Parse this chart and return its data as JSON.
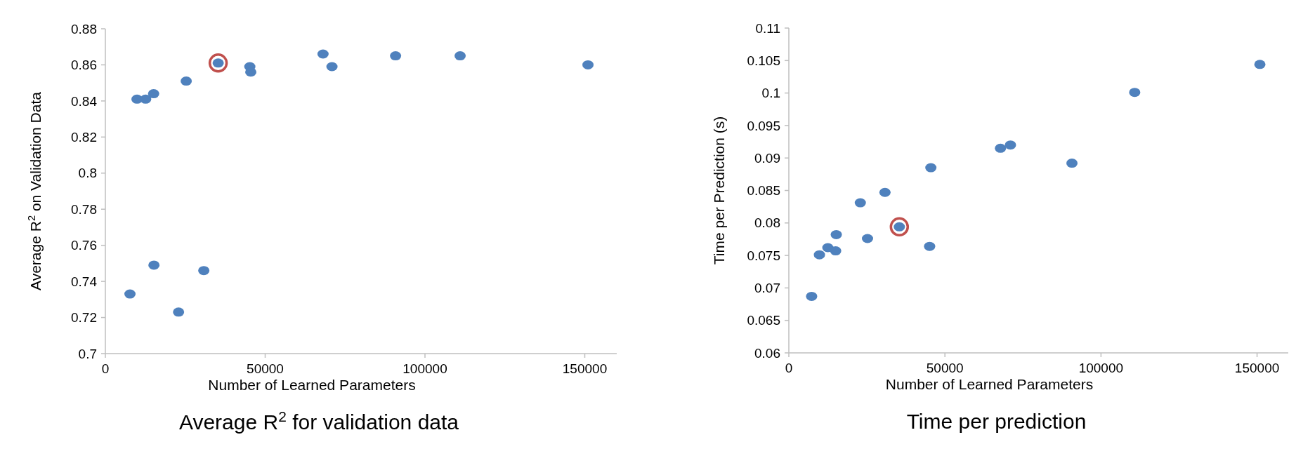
{
  "chart_data": [
    {
      "type": "scatter",
      "title": "Average R$^{2}$ for validation data",
      "xlabel": "Number of Learned Parameters",
      "ylabel": "Average R$^{2}$ on Validation Data",
      "marker": "circle",
      "grid": false,
      "xlim": [
        0,
        160000
      ],
      "xticks": [
        0,
        50000,
        100000,
        150000
      ],
      "ylim": [
        0.7,
        0.88
      ],
      "yticks": [
        0.7,
        0.72,
        0.74,
        0.76,
        0.78,
        0.8,
        0.82,
        0.84,
        0.86,
        0.88
      ],
      "series": [
        {
          "color": "#4f81bd",
          "x": [
            9900,
            12600,
            15100,
            25300,
            35300,
            45200,
            45500,
            68100,
            70900,
            90800,
            111000,
            151000,
            7700,
            15200,
            22900,
            30800
          ],
          "values": [
            0.841,
            0.841,
            0.844,
            0.851,
            0.861,
            0.859,
            0.856,
            0.866,
            0.859,
            0.865,
            0.865,
            0.86,
            0.733,
            0.749,
            0.723,
            0.746
          ]
        },
        {
          "color": "#c0504d",
          "x": [
            35300
          ],
          "values": [
            0.861
          ]
        }
      ]
    },
    {
      "type": "scatter",
      "title": "Time per prediction",
      "xlabel": "Number of Learned Parameters",
      "ylabel": "Time per Prediction (s)",
      "marker": "circle",
      "grid": false,
      "xlim": [
        0,
        160000
      ],
      "xticks": [
        0,
        50000,
        100000,
        150000
      ],
      "ylim": [
        0.06,
        0.11
      ],
      "yticks": [
        0.06,
        0.065,
        0.07,
        0.075,
        0.08,
        0.085,
        0.09,
        0.095,
        0.1,
        0.105,
        0.11
      ],
      "series": [
        {
          "color": "#4f81bd",
          "x": [
            7300,
            9800,
            12500,
            15000,
            15200,
            22900,
            25200,
            30800,
            35400,
            45100,
            45500,
            67800,
            71000,
            90700,
            110800,
            150900
          ],
          "values": [
            0.0687,
            0.0751,
            0.0762,
            0.0757,
            0.0782,
            0.0831,
            0.0776,
            0.0847,
            0.0794,
            0.0764,
            0.0885,
            0.0915,
            0.092,
            0.0892,
            0.1001,
            0.1044
          ]
        },
        {
          "color": "#c0504d",
          "x": [
            35400
          ],
          "values": [
            0.0794
          ]
        }
      ]
    }
  ]
}
